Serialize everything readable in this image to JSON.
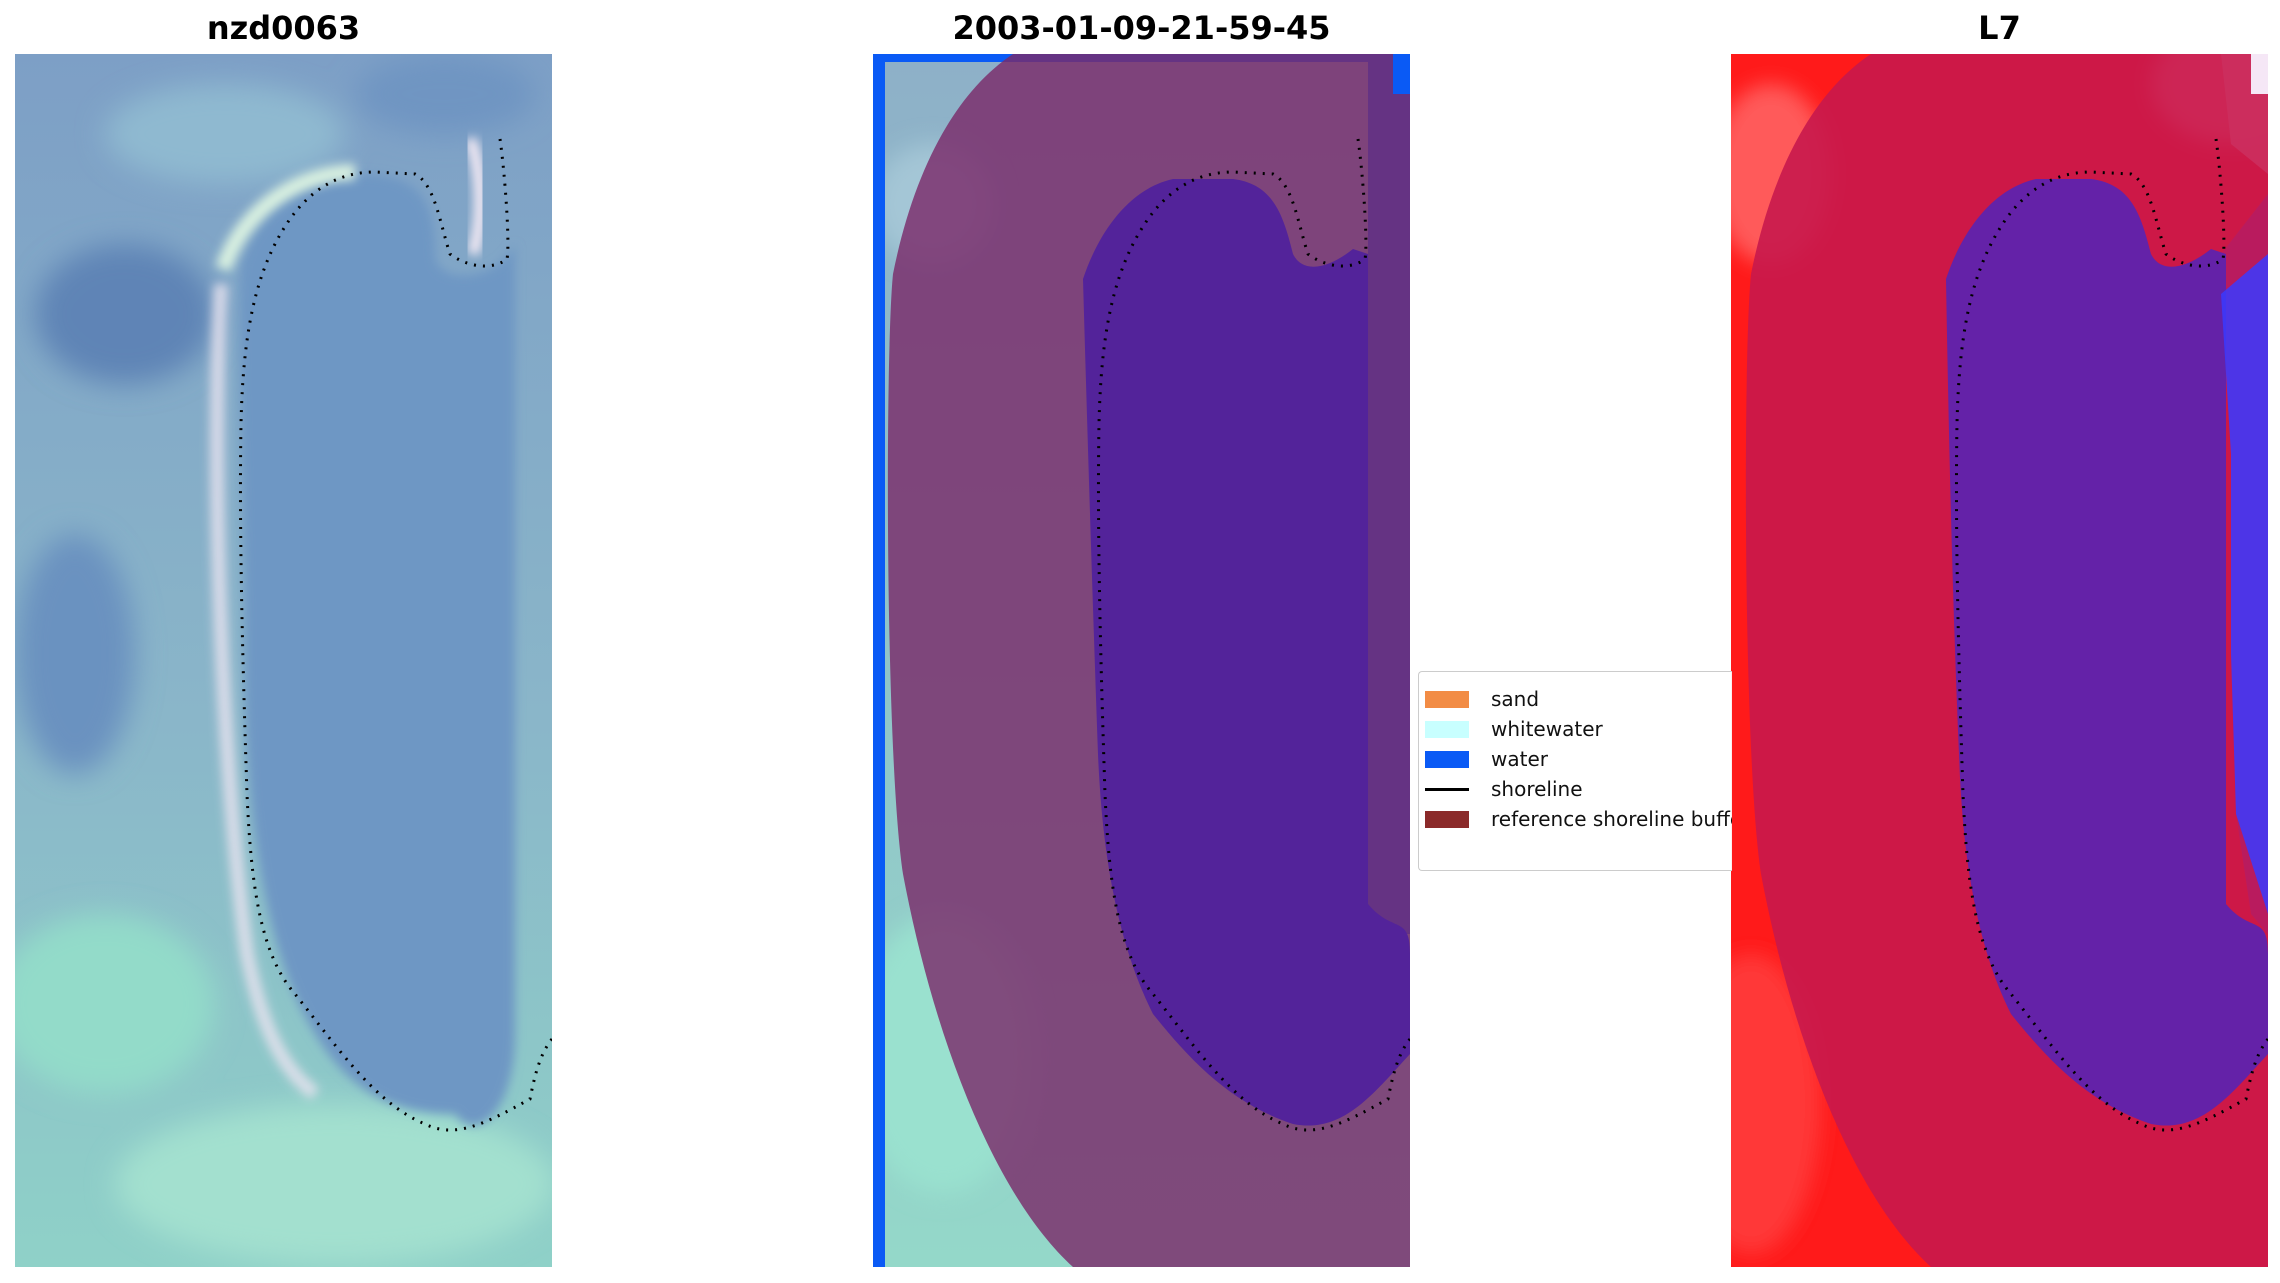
{
  "titles": {
    "left": "nzd0063",
    "middle": "2003-01-09-21-59-45",
    "right": "L7"
  },
  "legend": {
    "items": [
      {
        "label": "sand",
        "color": "#f28c45",
        "kind": "patch"
      },
      {
        "label": "whitewater",
        "color": "#c8ffff",
        "kind": "patch"
      },
      {
        "label": "water",
        "color": "#0a5af5",
        "kind": "patch"
      },
      {
        "label": "shoreline",
        "color": "#000000",
        "kind": "line"
      },
      {
        "label": "reference shoreline buffer",
        "color": "#8b2a2a",
        "kind": "patch"
      }
    ]
  },
  "colors": {
    "water_class": "#0a5af5",
    "buffer_overlay": "#7a2b6a",
    "water_in_buffer": "#53239a",
    "index_high": "#ff1a1a",
    "index_low": "#3030ff",
    "index_buffer": "#c8184c",
    "index_water_buffer": "#6422a8"
  }
}
